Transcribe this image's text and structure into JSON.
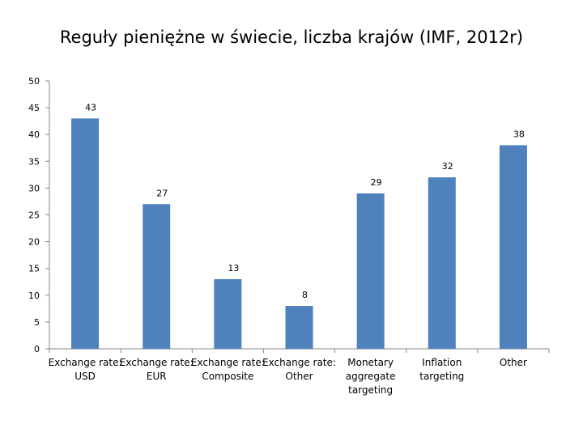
{
  "chart_data": {
    "type": "bar",
    "title": "Reguły pieniężne w świecie, liczba krajów (IMF, 2012r)",
    "categories": [
      [
        "Exchange rate:",
        "USD"
      ],
      [
        "Exchange rate:",
        "EUR"
      ],
      [
        "Exchange rate:",
        "Composite"
      ],
      [
        "Exchange rate:",
        "Other"
      ],
      [
        "Monetary",
        "aggregate",
        "targeting"
      ],
      [
        "Inflation",
        "targeting"
      ],
      [
        "Other"
      ]
    ],
    "values": [
      43,
      27,
      13,
      8,
      29,
      32,
      38
    ],
    "ylim": [
      0,
      50
    ],
    "yticks": [
      0,
      5,
      10,
      15,
      20,
      25,
      30,
      35,
      40,
      45,
      50
    ],
    "grid": false,
    "bar_color": "#4F81BD",
    "data_labels": true
  }
}
